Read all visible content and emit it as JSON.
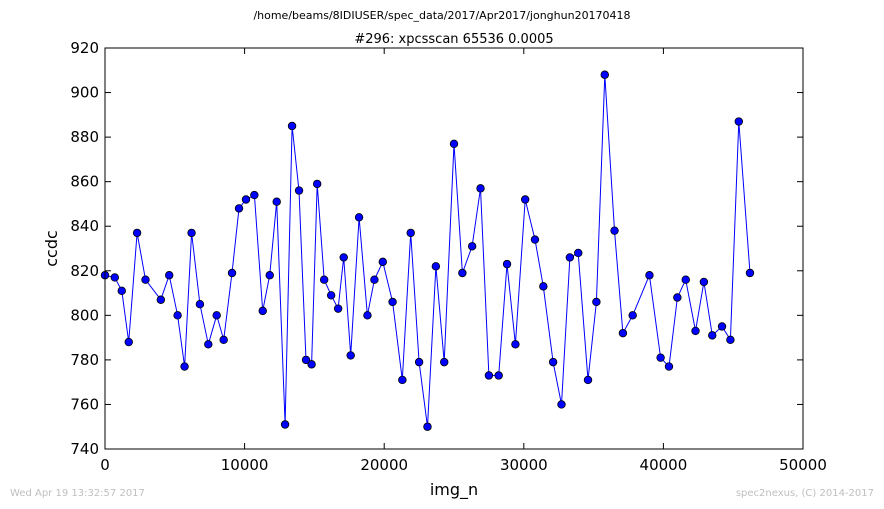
{
  "header": {
    "path": "/home/beams/8IDIUSER/spec_data/2017/Apr2017/jonghun20170418"
  },
  "footer": {
    "timestamp": "Wed Apr 19 13:32:57 2017",
    "credit": "spec2nexus, (C) 2014-2017"
  },
  "colors": {
    "line": "#0000ff",
    "marker_fill": "#0000ff",
    "marker_edge": "#000000"
  },
  "chart_data": {
    "type": "line",
    "title": "#296: xpcsscan 65536 0.0005",
    "xlabel": "img_n",
    "ylabel": "ccdc",
    "xlim": [
      0,
      50000
    ],
    "ylim": [
      740,
      920
    ],
    "xticks": [
      0,
      10000,
      20000,
      30000,
      40000,
      50000
    ],
    "yticks": [
      740,
      760,
      780,
      800,
      820,
      840,
      860,
      880,
      900,
      920
    ],
    "grid": false,
    "legend": "none",
    "markers": true,
    "series": [
      {
        "x": [
          0,
          700,
          1200,
          1700,
          2300,
          2900,
          4000,
          4600,
          5200,
          5700,
          6200,
          6800,
          7400,
          8000,
          8500,
          9100,
          9600,
          10100,
          10700,
          11300,
          11800,
          12300,
          12900,
          13400,
          13900,
          14400,
          14800,
          15200,
          15700,
          16200,
          16700,
          17100,
          17600,
          18200,
          18800,
          19300,
          19900,
          20600,
          21300,
          21900,
          22500,
          23100,
          23700,
          24300,
          25000,
          25600,
          26300,
          26900,
          27500,
          28200,
          28800,
          29400,
          30100,
          30800,
          31400,
          32100,
          32700,
          33300,
          33900,
          34600,
          35200,
          35800,
          36500,
          37100,
          37800,
          39000,
          39800,
          40400,
          41000,
          41600,
          42300,
          42900,
          43500,
          44200,
          44800,
          45400,
          46200
        ],
        "y": [
          818,
          817,
          811,
          788,
          837,
          816,
          807,
          818,
          800,
          777,
          837,
          805,
          787,
          800,
          789,
          819,
          848,
          852,
          854,
          802,
          818,
          851,
          751,
          885,
          856,
          780,
          778,
          859,
          816,
          809,
          803,
          826,
          782,
          844,
          800,
          816,
          824,
          806,
          771,
          837,
          779,
          750,
          822,
          779,
          877,
          819,
          831,
          857,
          773,
          773,
          823,
          787,
          852,
          834,
          813,
          779,
          760,
          826,
          828,
          771,
          806,
          908,
          838,
          792,
          800,
          818,
          781,
          777,
          808,
          816,
          793,
          815,
          791,
          795,
          789,
          887,
          819
        ]
      }
    ]
  }
}
